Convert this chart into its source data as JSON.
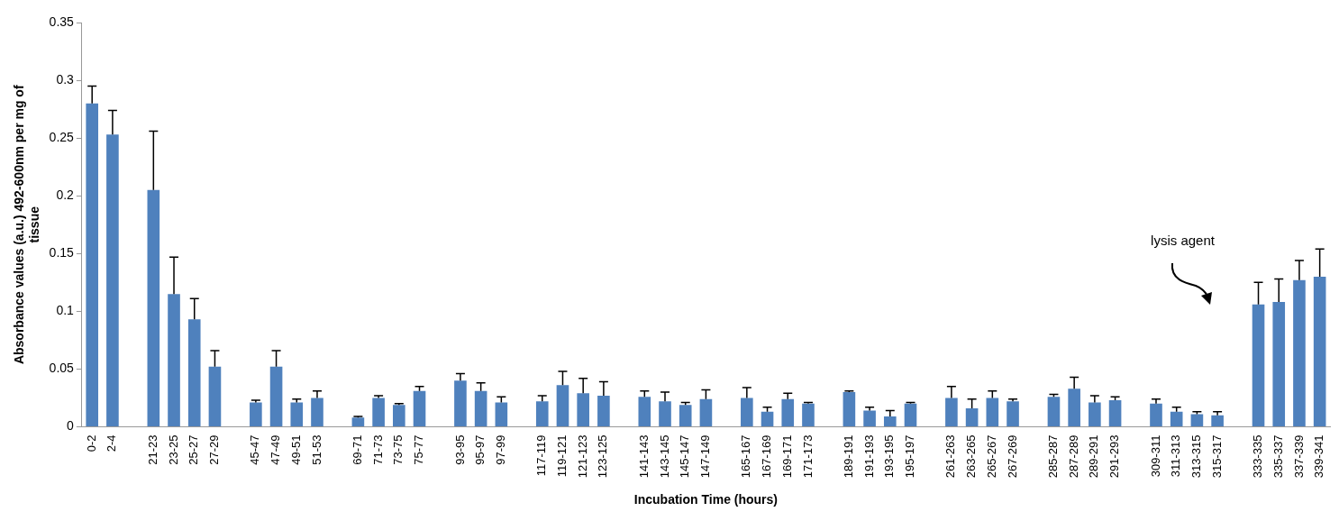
{
  "chart_data": {
    "type": "bar",
    "xlabel": "Incubation Time (hours)",
    "ylabel": "Absorbance values (a.u.) 492-600nm per mg of tissue",
    "categories": [
      "0-2",
      "2-4",
      null,
      "21-23",
      "23-25",
      "25-27",
      "27-29",
      null,
      "45-47",
      "47-49",
      "49-51",
      "51-53",
      null,
      "69-71",
      "71-73",
      "73-75",
      "75-77",
      null,
      "93-95",
      "95-97",
      "97-99",
      null,
      "117-119",
      "119-121",
      "121-123",
      "123-125",
      null,
      "141-143",
      "143-145",
      "145-147",
      "147-149",
      null,
      "165-167",
      "167-169",
      "169-171",
      "171-173",
      null,
      "189-191",
      "191-193",
      "193-195",
      "195-197",
      null,
      "261-263",
      "263-265",
      "265-267",
      "267-269",
      null,
      "285-287",
      "287-289",
      "289-291",
      "291-293",
      null,
      "309-311",
      "311-313",
      "313-315",
      "315-317",
      null,
      "333-335",
      "335-337",
      "337-339",
      "339-341"
    ],
    "values": [
      0.28,
      0.253,
      null,
      0.205,
      0.115,
      0.093,
      0.052,
      null,
      0.021,
      0.052,
      0.021,
      0.025,
      null,
      0.008,
      0.025,
      0.019,
      0.031,
      null,
      0.04,
      0.031,
      0.021,
      null,
      0.022,
      0.036,
      0.029,
      0.027,
      null,
      0.026,
      0.022,
      0.019,
      0.024,
      null,
      0.025,
      0.013,
      0.024,
      0.02,
      null,
      0.03,
      0.014,
      0.009,
      0.02,
      null,
      0.025,
      0.016,
      0.025,
      0.022,
      null,
      0.026,
      0.033,
      0.021,
      0.023,
      null,
      0.02,
      0.013,
      0.011,
      0.01,
      null,
      0.106,
      0.108,
      0.127,
      0.13
    ],
    "errors": [
      [
        0.28,
        0.295
      ],
      [
        0.253,
        0.274
      ],
      null,
      [
        0.205,
        0.256
      ],
      [
        0.115,
        0.147
      ],
      [
        0.093,
        0.111
      ],
      [
        0.052,
        0.066
      ],
      null,
      [
        0.021,
        0.023
      ],
      [
        0.052,
        0.066
      ],
      [
        0.021,
        0.024
      ],
      [
        0.025,
        0.031
      ],
      null,
      [
        0.008,
        0.009
      ],
      [
        0.025,
        0.027
      ],
      [
        0.019,
        0.02
      ],
      [
        0.031,
        0.035
      ],
      null,
      [
        0.04,
        0.046
      ],
      [
        0.031,
        0.038
      ],
      [
        0.021,
        0.026
      ],
      null,
      [
        0.022,
        0.027
      ],
      [
        0.036,
        0.048
      ],
      [
        0.029,
        0.042
      ],
      [
        0.027,
        0.039
      ],
      null,
      [
        0.026,
        0.031
      ],
      [
        0.022,
        0.03
      ],
      [
        0.019,
        0.021
      ],
      [
        0.024,
        0.032
      ],
      null,
      [
        0.025,
        0.034
      ],
      [
        0.013,
        0.017
      ],
      [
        0.024,
        0.029
      ],
      [
        0.02,
        0.021
      ],
      null,
      [
        0.03,
        0.031
      ],
      [
        0.014,
        0.017
      ],
      [
        0.009,
        0.014
      ],
      [
        0.02,
        0.021
      ],
      null,
      [
        0.025,
        0.035
      ],
      [
        0.016,
        0.024
      ],
      [
        0.025,
        0.031
      ],
      [
        0.022,
        0.024
      ],
      null,
      [
        0.026,
        0.028
      ],
      [
        0.033,
        0.043
      ],
      [
        0.021,
        0.027
      ],
      [
        0.023,
        0.026
      ],
      null,
      [
        0.02,
        0.024
      ],
      [
        0.013,
        0.017
      ],
      [
        0.011,
        0.013
      ],
      [
        0.01,
        0.013
      ],
      null,
      [
        0.106,
        0.125
      ],
      [
        0.108,
        0.128
      ],
      [
        0.127,
        0.144
      ],
      [
        0.13,
        0.154
      ]
    ],
    "color": "#4f81bd",
    "ylim": [
      0,
      0.35
    ],
    "yticks": [
      0,
      0.05,
      0.1,
      0.15,
      0.2,
      0.25,
      0.3,
      0.35
    ],
    "grid": false,
    "legend": false,
    "annotations": [
      "lysis agent"
    ]
  }
}
